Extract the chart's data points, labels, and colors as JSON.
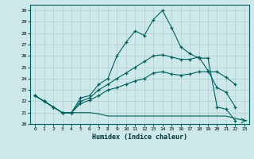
{
  "title": "",
  "xlabel": "Humidex (Indice chaleur)",
  "background_color": "#cce8e8",
  "grid_color": "#b0cccc",
  "line_color": "#006060",
  "xlim": [
    -0.5,
    23.5
  ],
  "ylim": [
    20,
    30.5
  ],
  "xticks": [
    0,
    1,
    2,
    3,
    4,
    5,
    6,
    7,
    8,
    9,
    10,
    11,
    12,
    13,
    14,
    15,
    16,
    17,
    18,
    19,
    20,
    21,
    22,
    23
  ],
  "yticks": [
    20,
    21,
    22,
    23,
    24,
    25,
    26,
    27,
    28,
    29,
    30
  ],
  "series": [
    {
      "x": [
        0,
        1,
        2,
        3,
        4,
        5,
        6,
        7,
        8,
        9,
        10,
        11,
        12,
        13,
        14,
        15,
        16,
        17,
        18,
        19,
        20,
        21,
        22
      ],
      "y": [
        22.5,
        22.0,
        21.5,
        21.0,
        21.0,
        22.3,
        22.5,
        23.5,
        24.0,
        26.0,
        27.2,
        28.2,
        27.8,
        29.2,
        30.0,
        28.5,
        26.8,
        26.2,
        25.8,
        25.8,
        21.5,
        21.3,
        20.3
      ],
      "marker": true
    },
    {
      "x": [
        0,
        1,
        2,
        3,
        4,
        5,
        6,
        7,
        8,
        9,
        10,
        11,
        12,
        13,
        14,
        15,
        16,
        17,
        18,
        19,
        20,
        21,
        22
      ],
      "y": [
        22.5,
        22.0,
        21.5,
        21.0,
        21.0,
        22.0,
        22.3,
        23.0,
        23.5,
        24.0,
        24.5,
        25.0,
        25.5,
        26.0,
        26.1,
        25.9,
        25.7,
        25.7,
        25.9,
        24.7,
        23.2,
        22.8,
        21.5
      ],
      "marker": true
    },
    {
      "x": [
        0,
        1,
        2,
        3,
        4,
        5,
        6,
        7,
        8,
        9,
        10,
        11,
        12,
        13,
        14,
        15,
        16,
        17,
        18,
        19,
        20,
        21,
        22
      ],
      "y": [
        22.5,
        22.0,
        21.5,
        21.0,
        21.0,
        21.8,
        22.1,
        22.5,
        23.0,
        23.2,
        23.5,
        23.8,
        24.0,
        24.5,
        24.6,
        24.4,
        24.3,
        24.4,
        24.6,
        24.6,
        24.6,
        24.1,
        23.5
      ],
      "marker": true
    },
    {
      "x": [
        0,
        1,
        2,
        3,
        4,
        5,
        6,
        7,
        8,
        9,
        10,
        11,
        12,
        13,
        14,
        15,
        16,
        17,
        18,
        19,
        20,
        21,
        22,
        23
      ],
      "y": [
        22.5,
        22.0,
        21.5,
        21.0,
        21.0,
        21.0,
        21.0,
        20.9,
        20.7,
        20.7,
        20.7,
        20.7,
        20.7,
        20.7,
        20.7,
        20.7,
        20.7,
        20.7,
        20.7,
        20.7,
        20.7,
        20.7,
        20.5,
        20.3
      ],
      "marker": false
    }
  ]
}
